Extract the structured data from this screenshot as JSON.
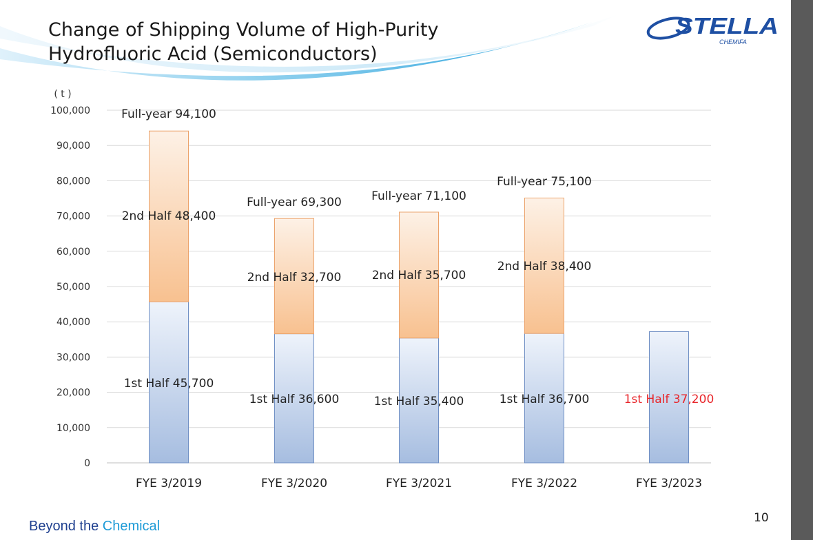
{
  "header": {
    "title_line1": "Change of Shipping Volume of High-Purity",
    "title_line2": "Hydrofluoric Acid (Semiconductors)",
    "logo_text": "STELLA",
    "logo_subtext": "CHEMIFA"
  },
  "footer": {
    "tagline_part1": "Beyond the",
    "tagline_part2": "Chemical",
    "page_number": "10"
  },
  "colors": {
    "first_half_top": "#eef3fb",
    "first_half_bottom": "#a6bde0",
    "first_half_stroke": "#6f8fc4",
    "second_half_top": "#fdf1e6",
    "second_half_bottom": "#f8c190",
    "second_half_stroke": "#eba26a",
    "highlight_label": "#e8262b",
    "logo_blue": "#1e4fa3"
  },
  "chart_data": {
    "type": "bar",
    "stacked": true,
    "unit_label": "( t )",
    "ylim": [
      0,
      100000
    ],
    "yticks": [
      "0",
      "10,000",
      "20,000",
      "30,000",
      "40,000",
      "50,000",
      "60,000",
      "70,000",
      "80,000",
      "90,000",
      "100,000"
    ],
    "grid": true,
    "categories": [
      "FYE 3/2019",
      "FYE 3/2020",
      "FYE 3/2021",
      "FYE 3/2022",
      "FYE 3/2023"
    ],
    "series": [
      {
        "name": "1st Half",
        "values": [
          45700,
          36600,
          35400,
          36700,
          37200
        ]
      },
      {
        "name": "2nd Half",
        "values": [
          48400,
          32700,
          35700,
          38400,
          null
        ]
      }
    ],
    "totals": [
      94100,
      69300,
      71100,
      75100,
      null
    ],
    "labels": {
      "first_half": [
        "1st Half 45,700",
        "1st Half 36,600",
        "1st Half 35,400",
        "1st Half 36,700",
        "1st Half 37,200"
      ],
      "second_half": [
        "2nd Half 48,400",
        "2nd Half 32,700",
        "2nd Half 35,700",
        "2nd Half 38,400",
        ""
      ],
      "full_year": [
        "Full-year 94,100",
        "Full-year 69,300",
        "Full-year 71,100",
        "Full-year 75,100",
        ""
      ]
    },
    "highlight_first_half_index": 4
  }
}
